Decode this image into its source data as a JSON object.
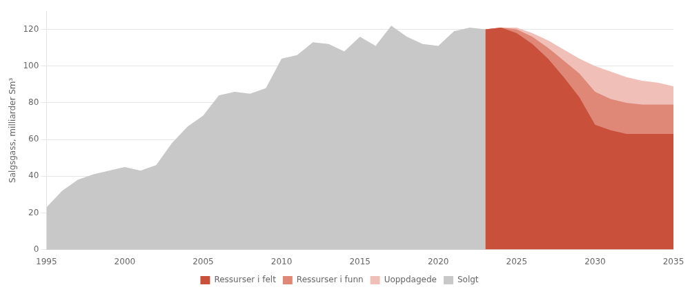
{
  "chart_data": {
    "type": "area",
    "ylabel": "Salgsgass, milliarder Sm³",
    "xlim": [
      1995,
      2035
    ],
    "ylim": [
      0,
      130
    ],
    "yticks": [
      0,
      20,
      40,
      60,
      80,
      100,
      120
    ],
    "xticks": [
      1995,
      2000,
      2005,
      2010,
      2015,
      2020,
      2025,
      2030,
      2035
    ],
    "grid": true,
    "legend": "bottom",
    "series": [
      {
        "name": "Ressurser i felt",
        "color": "#c9503a",
        "x": [
          2023,
          2024,
          2025,
          2026,
          2027,
          2028,
          2029,
          2030,
          2031,
          2032,
          2033,
          2034,
          2035
        ],
        "values": [
          120,
          121,
          118,
          112,
          104,
          94,
          83,
          68,
          65,
          63,
          63,
          63,
          63
        ]
      },
      {
        "name": "Ressurser i funn",
        "color": "#e08878",
        "x": [
          2023,
          2024,
          2025,
          2026,
          2027,
          2028,
          2029,
          2030,
          2031,
          2032,
          2033,
          2034,
          2035
        ],
        "values": [
          120,
          121,
          120,
          116,
          110,
          103,
          96,
          86,
          82,
          80,
          79,
          79,
          79
        ]
      },
      {
        "name": "Uoppdagede",
        "color": "#f0c0b8",
        "x": [
          2023,
          2024,
          2025,
          2026,
          2027,
          2028,
          2029,
          2030,
          2031,
          2032,
          2033,
          2034,
          2035
        ],
        "values": [
          120,
          121,
          121,
          118,
          114,
          109,
          104,
          100,
          97,
          94,
          92,
          91,
          89
        ]
      },
      {
        "name": "Solgt",
        "color": "#c8c8c8",
        "x": [
          1995,
          1996,
          1997,
          1998,
          1999,
          2000,
          2001,
          2002,
          2003,
          2004,
          2005,
          2006,
          2007,
          2008,
          2009,
          2010,
          2011,
          2012,
          2013,
          2014,
          2015,
          2016,
          2017,
          2018,
          2019,
          2020,
          2021,
          2022,
          2023
        ],
        "values": [
          23,
          32,
          38,
          41,
          43,
          45,
          43,
          46,
          58,
          67,
          73,
          84,
          86,
          85,
          88,
          104,
          106,
          113,
          112,
          108,
          116,
          111,
          122,
          116,
          112,
          111,
          119,
          121,
          120
        ]
      }
    ]
  }
}
